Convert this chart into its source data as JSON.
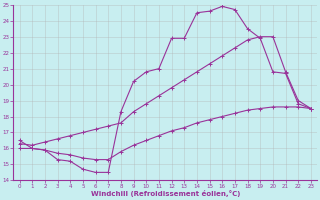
{
  "xlabel": "Windchill (Refroidissement éolien,°C)",
  "background_color": "#c8eef0",
  "grid_color": "#b0b0b0",
  "line_color": "#993399",
  "xlim": [
    -0.5,
    23.5
  ],
  "ylim": [
    14,
    25
  ],
  "xticks": [
    0,
    1,
    2,
    3,
    4,
    5,
    6,
    7,
    8,
    9,
    10,
    11,
    12,
    13,
    14,
    15,
    16,
    17,
    18,
    19,
    20,
    21,
    22,
    23
  ],
  "yticks": [
    14,
    15,
    16,
    17,
    18,
    19,
    20,
    21,
    22,
    23,
    24,
    25
  ],
  "line1_x": [
    0,
    1,
    2,
    3,
    4,
    5,
    6,
    7,
    8,
    9,
    10,
    11,
    12,
    13,
    14,
    15,
    16,
    17,
    18,
    19,
    20,
    21,
    22,
    23
  ],
  "line1_y": [
    16.5,
    16.0,
    15.9,
    15.3,
    15.2,
    14.7,
    14.5,
    14.5,
    18.3,
    20.2,
    20.8,
    21.0,
    22.9,
    22.9,
    24.5,
    24.6,
    24.9,
    24.7,
    23.5,
    22.9,
    20.8,
    20.7,
    18.8,
    18.5
  ],
  "line2_x": [
    0,
    1,
    2,
    3,
    4,
    5,
    6,
    7,
    8,
    9,
    10,
    11,
    12,
    13,
    14,
    15,
    16,
    17,
    18,
    19,
    20,
    21,
    22,
    23
  ],
  "line2_y": [
    16.3,
    16.2,
    16.4,
    16.6,
    16.8,
    17.0,
    17.2,
    17.4,
    17.6,
    18.3,
    18.8,
    19.3,
    19.8,
    20.3,
    20.8,
    21.3,
    21.8,
    22.3,
    22.8,
    23.0,
    23.0,
    20.8,
    19.0,
    18.5
  ],
  "line3_x": [
    0,
    1,
    2,
    3,
    4,
    5,
    6,
    7,
    8,
    9,
    10,
    11,
    12,
    13,
    14,
    15,
    16,
    17,
    18,
    19,
    20,
    21,
    22,
    23
  ],
  "line3_y": [
    16.0,
    16.0,
    15.9,
    15.7,
    15.6,
    15.4,
    15.3,
    15.3,
    15.8,
    16.2,
    16.5,
    16.8,
    17.1,
    17.3,
    17.6,
    17.8,
    18.0,
    18.2,
    18.4,
    18.5,
    18.6,
    18.6,
    18.6,
    18.5
  ]
}
